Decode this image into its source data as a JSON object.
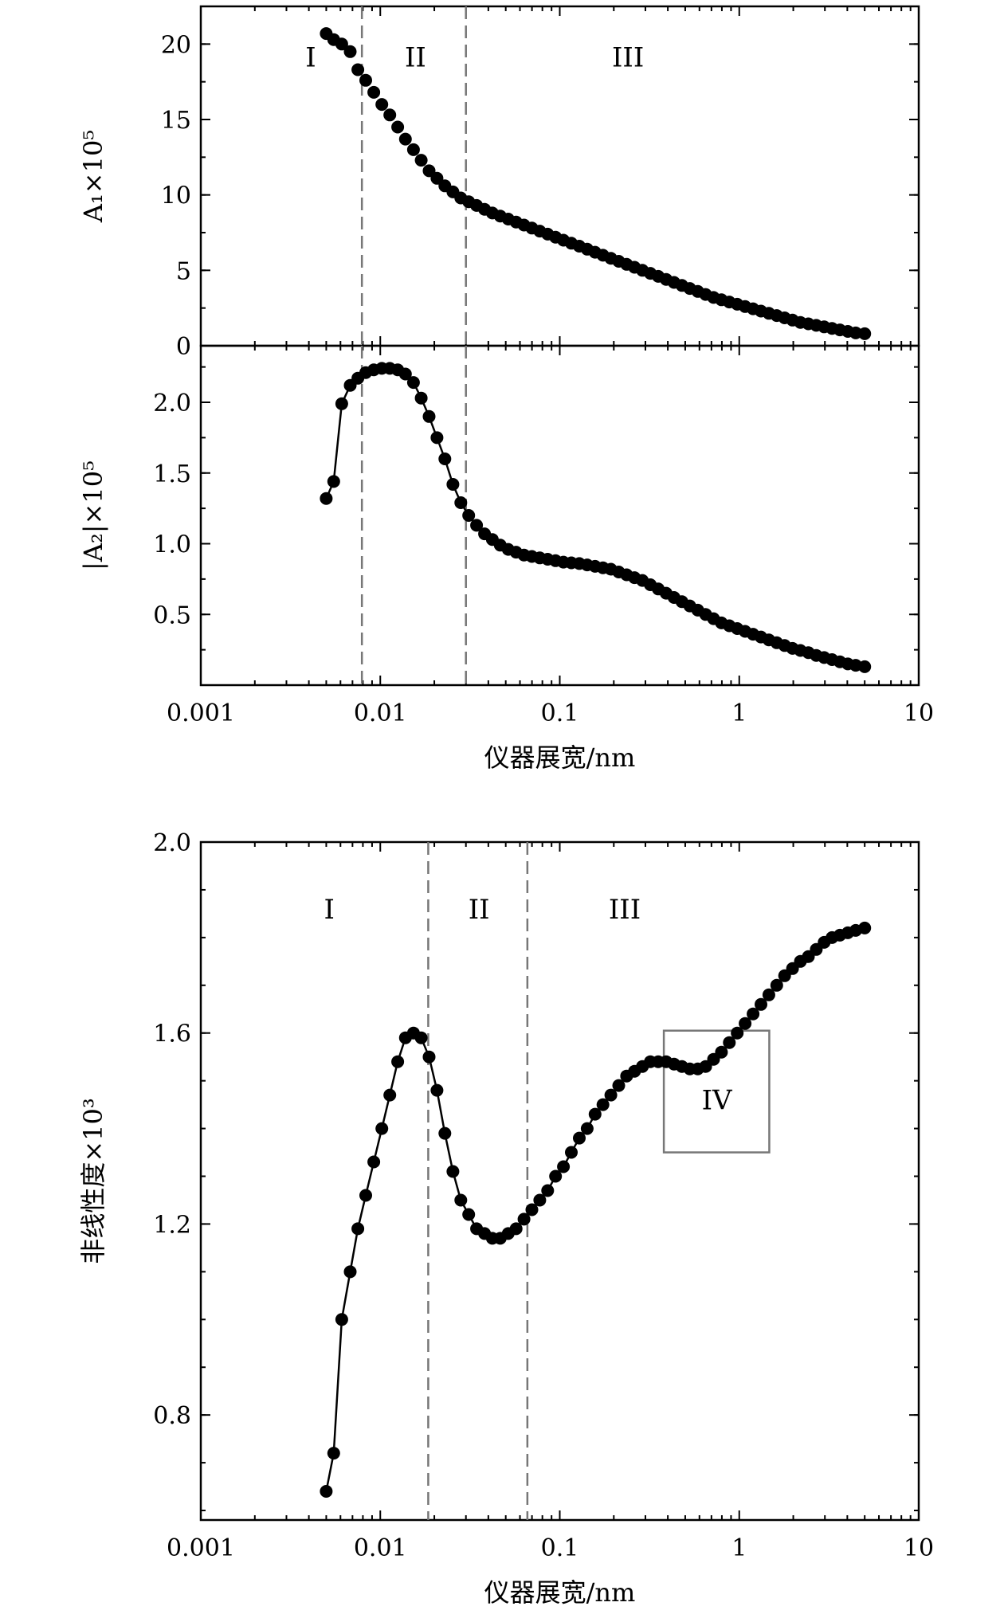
{
  "charts": [
    {
      "id": "a1",
      "type": "scatter",
      "ylabel": "A₁×10⁵",
      "xlabel": "",
      "xscale": "log",
      "xlim": [
        0.001,
        10
      ],
      "ylim": [
        0,
        22.5
      ],
      "xticks": [
        {
          "value": 0.001,
          "label": "0.001"
        },
        {
          "value": 0.01,
          "label": "0.01"
        },
        {
          "value": 0.1,
          "label": "0.1"
        },
        {
          "value": 1,
          "label": "1"
        },
        {
          "value": 10,
          "label": "10"
        }
      ],
      "show_xtick_labels": false,
      "yticks": [
        {
          "value": 0,
          "label": "0"
        },
        {
          "value": 5,
          "label": "5"
        },
        {
          "value": 10,
          "label": "10"
        },
        {
          "value": 15,
          "label": "15"
        },
        {
          "value": 20,
          "label": "20"
        }
      ],
      "y_minor_step": 2.5,
      "vlines": [
        0.0079,
        0.03
      ],
      "regions": [
        {
          "label": "I",
          "x": 0.0041,
          "y": 18.5
        },
        {
          "label": "II",
          "x": 0.0157,
          "y": 18.5
        },
        {
          "label": "III",
          "x": 0.24,
          "y": 18.5
        }
      ],
      "connected": false,
      "x": [
        0.005,
        0.0055,
        0.0061,
        0.0068,
        0.0075,
        0.0083,
        0.0092,
        0.0102,
        0.0113,
        0.0125,
        0.0138,
        0.0153,
        0.0169,
        0.0187,
        0.0207,
        0.0229,
        0.0254,
        0.0281,
        0.0311,
        0.0344,
        0.0381,
        0.0421,
        0.0466,
        0.0516,
        0.0571,
        0.0632,
        0.0699,
        0.0774,
        0.0856,
        0.0947,
        0.1048,
        0.116,
        0.1284,
        0.1421,
        0.1572,
        0.174,
        0.1926,
        0.2131,
        0.2358,
        0.261,
        0.2888,
        0.3196,
        0.3537,
        0.3914,
        0.4332,
        0.4794,
        0.5305,
        0.5871,
        0.6497,
        0.719,
        0.7957,
        0.8806,
        0.9745,
        1.0785,
        1.1935,
        1.3208,
        1.4617,
        1.6176,
        1.7902,
        1.9811,
        2.1925,
        2.4263,
        2.6851,
        2.9716,
        3.2885,
        3.6393,
        4.0275,
        4.4571,
        5.0
      ],
      "y": [
        20.7,
        20.3,
        20.0,
        19.5,
        18.3,
        17.6,
        16.8,
        16.0,
        15.3,
        14.5,
        13.7,
        13.0,
        12.3,
        11.6,
        11.1,
        10.6,
        10.2,
        9.8,
        9.55,
        9.3,
        9.05,
        8.8,
        8.6,
        8.4,
        8.2,
        8.0,
        7.8,
        7.6,
        7.4,
        7.2,
        7.0,
        6.8,
        6.6,
        6.4,
        6.2,
        6.0,
        5.8,
        5.6,
        5.4,
        5.2,
        5.0,
        4.8,
        4.6,
        4.4,
        4.2,
        4.0,
        3.8,
        3.6,
        3.4,
        3.2,
        3.05,
        2.9,
        2.75,
        2.6,
        2.45,
        2.3,
        2.15,
        2.0,
        1.85,
        1.7,
        1.55,
        1.45,
        1.35,
        1.25,
        1.15,
        1.05,
        0.95,
        0.85,
        0.8
      ]
    },
    {
      "id": "a2",
      "type": "line",
      "ylabel": "|A₂|×10⁵",
      "xlabel": "仪器展宽/nm",
      "xscale": "log",
      "xlim": [
        0.001,
        10
      ],
      "ylim": [
        0,
        2.4
      ],
      "xticks": [
        {
          "value": 0.001,
          "label": "0.001"
        },
        {
          "value": 0.01,
          "label": "0.01"
        },
        {
          "value": 0.1,
          "label": "0.1"
        },
        {
          "value": 1,
          "label": "1"
        },
        {
          "value": 10,
          "label": "10"
        }
      ],
      "show_xtick_labels": true,
      "yticks": [
        {
          "value": 0.5,
          "label": "0.5"
        },
        {
          "value": 1.0,
          "label": "1.0"
        },
        {
          "value": 1.5,
          "label": "1.5"
        },
        {
          "value": 2.0,
          "label": "2.0"
        }
      ],
      "y_minor_step": 0.25,
      "vlines": [
        0.0079,
        0.03
      ],
      "regions": [],
      "connected": true,
      "x": [
        0.005,
        0.0055,
        0.0061,
        0.0068,
        0.0075,
        0.0083,
        0.0092,
        0.0102,
        0.0113,
        0.0125,
        0.0138,
        0.0153,
        0.0169,
        0.0187,
        0.0207,
        0.0229,
        0.0254,
        0.0281,
        0.0311,
        0.0344,
        0.0381,
        0.0421,
        0.0466,
        0.0516,
        0.0571,
        0.0632,
        0.0699,
        0.0774,
        0.0856,
        0.0947,
        0.1048,
        0.116,
        0.1284,
        0.1421,
        0.1572,
        0.174,
        0.1926,
        0.2131,
        0.2358,
        0.261,
        0.2888,
        0.3196,
        0.3537,
        0.3914,
        0.4332,
        0.4794,
        0.5305,
        0.5871,
        0.6497,
        0.719,
        0.7957,
        0.8806,
        0.9745,
        1.0785,
        1.1935,
        1.3208,
        1.4617,
        1.6176,
        1.7902,
        1.9811,
        2.1925,
        2.4263,
        2.6851,
        2.9716,
        3.2885,
        3.6393,
        4.0275,
        4.4571,
        5.0
      ],
      "y": [
        1.32,
        1.44,
        1.99,
        2.12,
        2.17,
        2.21,
        2.23,
        2.24,
        2.24,
        2.23,
        2.2,
        2.14,
        2.03,
        1.9,
        1.75,
        1.6,
        1.42,
        1.29,
        1.2,
        1.13,
        1.07,
        1.03,
        0.99,
        0.96,
        0.94,
        0.92,
        0.91,
        0.9,
        0.89,
        0.88,
        0.87,
        0.865,
        0.86,
        0.85,
        0.84,
        0.83,
        0.82,
        0.8,
        0.78,
        0.76,
        0.74,
        0.71,
        0.68,
        0.65,
        0.62,
        0.59,
        0.56,
        0.53,
        0.5,
        0.47,
        0.44,
        0.42,
        0.4,
        0.38,
        0.36,
        0.34,
        0.32,
        0.3,
        0.28,
        0.26,
        0.245,
        0.23,
        0.21,
        0.195,
        0.18,
        0.165,
        0.15,
        0.14,
        0.13
      ]
    },
    {
      "id": "nonlinearity",
      "type": "line",
      "ylabel": "非线性度×10³",
      "xlabel": "仪器展宽/nm",
      "xscale": "log",
      "xlim": [
        0.001,
        10
      ],
      "ylim": [
        0.58,
        2.0
      ],
      "xticks": [
        {
          "value": 0.001,
          "label": "0.001"
        },
        {
          "value": 0.01,
          "label": "0.01"
        },
        {
          "value": 0.1,
          "label": "0.1"
        },
        {
          "value": 1,
          "label": "1"
        },
        {
          "value": 10,
          "label": "10"
        }
      ],
      "show_xtick_labels": true,
      "yticks": [
        {
          "value": 0.8,
          "label": "0.8"
        },
        {
          "value": 1.2,
          "label": "1.2"
        },
        {
          "value": 1.6,
          "label": "1.6"
        },
        {
          "value": 2.0,
          "label": "2.0"
        }
      ],
      "y_minor_step": 0.1,
      "vlines": [
        0.0185,
        0.066
      ],
      "regions": [
        {
          "label": "I",
          "x": 0.0052,
          "y": 1.84
        },
        {
          "label": "II",
          "x": 0.0355,
          "y": 1.84
        },
        {
          "label": "III",
          "x": 0.23,
          "y": 1.84
        },
        {
          "label": "IV",
          "x": 0.75,
          "y": 1.44
        }
      ],
      "inset_box": {
        "x0": 0.38,
        "x1": 1.47,
        "y0": 1.35,
        "y1": 1.605
      },
      "connected": true,
      "x": [
        0.005,
        0.0055,
        0.0061,
        0.0068,
        0.0075,
        0.0083,
        0.0092,
        0.0102,
        0.0113,
        0.0125,
        0.0138,
        0.0153,
        0.0169,
        0.0187,
        0.0207,
        0.0229,
        0.0254,
        0.0281,
        0.0311,
        0.0344,
        0.0381,
        0.0421,
        0.0466,
        0.0516,
        0.0571,
        0.0632,
        0.0699,
        0.0774,
        0.0856,
        0.0947,
        0.1048,
        0.116,
        0.1284,
        0.1421,
        0.1572,
        0.174,
        0.1926,
        0.2131,
        0.2358,
        0.261,
        0.2888,
        0.3196,
        0.3537,
        0.3914,
        0.4332,
        0.4794,
        0.5305,
        0.5871,
        0.6497,
        0.719,
        0.7957,
        0.8806,
        0.9745,
        1.0785,
        1.1935,
        1.3208,
        1.4617,
        1.6176,
        1.7902,
        1.9811,
        2.1925,
        2.4263,
        2.6851,
        2.9716,
        3.2885,
        3.6393,
        4.0275,
        4.4571,
        5.0
      ],
      "y": [
        0.64,
        0.72,
        1.0,
        1.1,
        1.19,
        1.26,
        1.33,
        1.4,
        1.47,
        1.54,
        1.59,
        1.6,
        1.59,
        1.55,
        1.48,
        1.39,
        1.31,
        1.25,
        1.22,
        1.19,
        1.18,
        1.17,
        1.17,
        1.18,
        1.19,
        1.21,
        1.23,
        1.25,
        1.27,
        1.3,
        1.32,
        1.35,
        1.38,
        1.4,
        1.43,
        1.45,
        1.47,
        1.49,
        1.51,
        1.52,
        1.53,
        1.54,
        1.54,
        1.54,
        1.535,
        1.53,
        1.525,
        1.525,
        1.53,
        1.545,
        1.56,
        1.58,
        1.6,
        1.62,
        1.64,
        1.66,
        1.68,
        1.7,
        1.72,
        1.735,
        1.75,
        1.76,
        1.775,
        1.79,
        1.8,
        1.805,
        1.81,
        1.815,
        1.82
      ]
    }
  ]
}
